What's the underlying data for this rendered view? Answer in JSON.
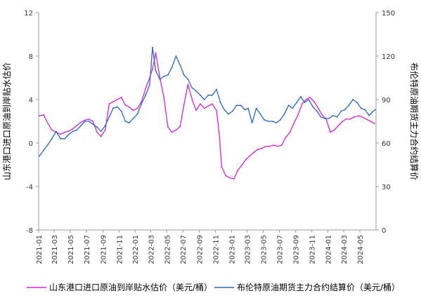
{
  "chart_data": {
    "type": "line",
    "xlabel": "",
    "y_left": {
      "label": "山东港口进口原油到岸贴水估价",
      "ylim": [
        -8,
        12
      ],
      "ticks": [
        "-8",
        "-4",
        "0",
        "4",
        "8",
        "12"
      ]
    },
    "y_right": {
      "label": "布伦特原油期货主力合约结算价",
      "ylim": [
        0,
        150
      ],
      "ticks": [
        "0",
        "30",
        "60",
        "90",
        "120",
        "150"
      ]
    },
    "x_tick_labels": [
      "2021-01",
      "2021-03",
      "2021-05",
      "2021-07",
      "2021-09",
      "2021-11",
      "2022-01",
      "2022-03",
      "2022-05",
      "2022-07",
      "2022-09",
      "2022-11",
      "2023-01",
      "2023-03",
      "2023-05",
      "2023-07",
      "2023-09",
      "2023-11",
      "2024-01",
      "2024-03",
      "2024-05"
    ],
    "grid": false,
    "legend_position": "bottom",
    "series": [
      {
        "name": "山东港口进口原油到岸贴水估价（美元/桶）",
        "axis": "left",
        "color": "#e020e0",
        "x": [
          "2021-01-04",
          "2021-01-20",
          "2021-02-05",
          "2021-02-20",
          "2021-03-08",
          "2021-03-25",
          "2021-04-10",
          "2021-04-25",
          "2021-05-10",
          "2021-05-25",
          "2021-06-10",
          "2021-06-25",
          "2021-07-10",
          "2021-07-25",
          "2021-08-10",
          "2021-08-25",
          "2021-09-10",
          "2021-09-25",
          "2021-10-10",
          "2021-10-25",
          "2021-11-10",
          "2021-11-25",
          "2021-12-10",
          "2021-12-25",
          "2022-01-10",
          "2022-01-25",
          "2022-02-10",
          "2022-02-25",
          "2022-03-08",
          "2022-03-20",
          "2022-04-05",
          "2022-04-20",
          "2022-05-05",
          "2022-05-20",
          "2022-06-05",
          "2022-06-20",
          "2022-07-05",
          "2022-07-20",
          "2022-08-05",
          "2022-08-20",
          "2022-09-05",
          "2022-09-20",
          "2022-10-05",
          "2022-10-20",
          "2022-11-05",
          "2022-11-15",
          "2022-11-25",
          "2022-12-10",
          "2022-12-25",
          "2023-01-10",
          "2023-01-25",
          "2023-02-10",
          "2023-02-25",
          "2023-03-10",
          "2023-03-25",
          "2023-04-10",
          "2023-04-25",
          "2023-05-10",
          "2023-05-25",
          "2023-06-10",
          "2023-06-25",
          "2023-07-10",
          "2023-07-25",
          "2023-08-10",
          "2023-08-25",
          "2023-09-10",
          "2023-09-25",
          "2023-10-10",
          "2023-10-25",
          "2023-11-10",
          "2023-11-25",
          "2023-12-10",
          "2023-12-25",
          "2024-01-10",
          "2024-01-25",
          "2024-02-10",
          "2024-02-25",
          "2024-03-10",
          "2024-03-25",
          "2024-04-10",
          "2024-04-25",
          "2024-05-10",
          "2024-05-25",
          "2024-06-10",
          "2024-06-25"
        ],
        "values": [
          2.5,
          2.6,
          1.8,
          1.2,
          1.0,
          0.8,
          1.0,
          1.1,
          1.3,
          1.6,
          1.9,
          2.1,
          2.2,
          2.0,
          1.0,
          0.6,
          1.2,
          3.6,
          3.8,
          4.0,
          4.2,
          3.5,
          3.3,
          3.0,
          3.2,
          3.8,
          5.0,
          6.0,
          6.8,
          8.3,
          6.0,
          4.2,
          1.5,
          1.0,
          1.2,
          1.5,
          3.5,
          5.4,
          4.0,
          3.0,
          3.6,
          3.2,
          3.4,
          3.6,
          3.0,
          1.0,
          -2.2,
          -3.0,
          -3.2,
          -3.3,
          -2.5,
          -2.0,
          -1.5,
          -1.2,
          -0.9,
          -0.6,
          -0.5,
          -0.3,
          -0.3,
          -0.2,
          -0.3,
          -0.2,
          0.5,
          1.0,
          1.8,
          2.6,
          3.6,
          4.0,
          4.2,
          3.8,
          3.2,
          2.6,
          2.2,
          1.0,
          1.2,
          1.6,
          2.0,
          2.2,
          2.2,
          2.4,
          2.5,
          2.4,
          2.2,
          2.0,
          1.8
        ]
      },
      {
        "name": "布伦特原油期货主力合约结算价（美元/桶）",
        "axis": "right",
        "color": "#2566cc",
        "x": [
          "2021-01-04",
          "2021-01-20",
          "2021-02-05",
          "2021-02-20",
          "2021-03-08",
          "2021-03-25",
          "2021-04-10",
          "2021-04-25",
          "2021-05-10",
          "2021-05-25",
          "2021-06-10",
          "2021-06-25",
          "2021-07-10",
          "2021-07-25",
          "2021-08-10",
          "2021-08-25",
          "2021-09-10",
          "2021-09-25",
          "2021-10-10",
          "2021-10-25",
          "2021-11-10",
          "2021-11-25",
          "2021-12-10",
          "2021-12-25",
          "2022-01-10",
          "2022-01-25",
          "2022-02-10",
          "2022-02-25",
          "2022-03-08",
          "2022-03-20",
          "2022-04-05",
          "2022-04-20",
          "2022-05-05",
          "2022-05-20",
          "2022-06-05",
          "2022-06-20",
          "2022-07-05",
          "2022-07-20",
          "2022-08-05",
          "2022-08-20",
          "2022-09-05",
          "2022-09-20",
          "2022-10-05",
          "2022-10-20",
          "2022-11-05",
          "2022-11-20",
          "2022-12-05",
          "2022-12-20",
          "2023-01-05",
          "2023-01-20",
          "2023-02-05",
          "2023-02-20",
          "2023-03-05",
          "2023-03-20",
          "2023-04-05",
          "2023-04-20",
          "2023-05-05",
          "2023-05-20",
          "2023-06-05",
          "2023-06-20",
          "2023-07-05",
          "2023-07-20",
          "2023-08-05",
          "2023-08-20",
          "2023-09-05",
          "2023-09-20",
          "2023-10-05",
          "2023-10-20",
          "2023-11-05",
          "2023-11-20",
          "2023-12-05",
          "2023-12-20",
          "2024-01-05",
          "2024-01-20",
          "2024-02-05",
          "2024-02-20",
          "2024-03-05",
          "2024-03-20",
          "2024-04-05",
          "2024-04-20",
          "2024-05-05",
          "2024-05-20",
          "2024-06-05",
          "2024-06-20",
          "2024-06-28"
        ],
        "values": [
          51,
          55,
          59,
          63,
          68,
          63,
          63,
          66,
          68,
          69,
          72,
          75,
          75,
          73,
          71,
          68,
          72,
          78,
          84,
          85,
          82,
          75,
          74,
          77,
          80,
          87,
          93,
          100,
          126,
          110,
          104,
          106,
          107,
          112,
          120,
          114,
          107,
          104,
          98,
          96,
          93,
          90,
          93,
          93,
          97,
          88,
          83,
          80,
          82,
          86,
          86,
          83,
          84,
          74,
          84,
          80,
          76,
          75,
          75,
          74,
          76,
          80,
          86,
          84,
          88,
          92,
          88,
          90,
          85,
          82,
          78,
          77,
          77,
          79,
          78,
          82,
          83,
          86,
          90,
          88,
          84,
          83,
          79,
          82,
          83
        ]
      }
    ]
  }
}
